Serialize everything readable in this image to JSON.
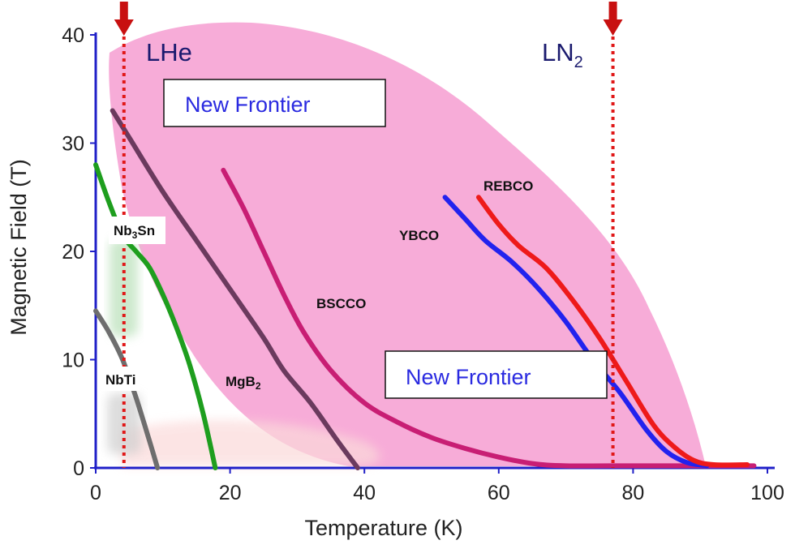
{
  "chart_data": {
    "type": "line",
    "xlabel": "Temperature (K)",
    "ylabel": "Magnetic Field  (T)",
    "xlim": [
      0,
      100
    ],
    "ylim": [
      0,
      40
    ],
    "x_ticks": [
      "0",
      "20",
      "40",
      "60",
      "80",
      "100"
    ],
    "y_ticks": [
      "0",
      "10",
      "20",
      "30",
      "40"
    ],
    "grid": false,
    "reference_lines": [
      {
        "name": "LHe",
        "sub": "",
        "x": 4.2,
        "color": "#e01818"
      },
      {
        "name": "LN",
        "sub": "2",
        "x": 77,
        "color": "#e01818"
      }
    ],
    "regions": [
      {
        "name": "New Frontier",
        "color": "#f7a8d6"
      }
    ],
    "region_labels": [
      "New Frontier",
      "New Frontier"
    ],
    "series": [
      {
        "name": "NbTi",
        "color": "#6e6e6e",
        "x": [
          0,
          2,
          4,
          6,
          8,
          9.2
        ],
        "y": [
          14.5,
          12.5,
          10,
          6.5,
          2.5,
          0
        ]
      },
      {
        "name": "Nb",
        "sub": "3",
        "suffix": "Sn",
        "color": "#1e9e1e",
        "x": [
          0,
          2,
          4,
          6,
          8,
          10,
          12,
          14,
          16,
          17.8
        ],
        "y": [
          28,
          24.5,
          21.5,
          20,
          18.5,
          16,
          13,
          9.5,
          5,
          0
        ]
      },
      {
        "name": "MgB",
        "sub": "2",
        "suffix": "",
        "color": "#6b3a5e",
        "x": [
          2.5,
          5,
          10,
          15,
          20,
          25,
          28,
          32,
          36,
          39
        ],
        "y": [
          33,
          30.5,
          25.5,
          21,
          16.5,
          12,
          9,
          6,
          2.5,
          0
        ]
      },
      {
        "name": "BSCCO",
        "color": "#c81e74",
        "x": [
          19,
          22,
          25,
          28,
          31,
          35,
          40,
          45,
          50,
          55,
          60,
          65,
          70,
          80,
          90,
          98
        ],
        "y": [
          27.5,
          24,
          20,
          16,
          12.5,
          9,
          6,
          4.2,
          2.8,
          1.8,
          1,
          0.4,
          0.2,
          0.2,
          0.2,
          0.2
        ]
      },
      {
        "name": "YBCO",
        "color": "#2222ee",
        "x": [
          52,
          55,
          58,
          62,
          66,
          70,
          74,
          78,
          82,
          85,
          88,
          91
        ],
        "y": [
          25,
          23,
          21,
          19,
          16.5,
          13.5,
          10,
          7,
          3.5,
          1.5,
          0.5,
          0.2
        ]
      },
      {
        "name": "REBCO",
        "color": "#ee1a1a",
        "x": [
          57,
          60,
          63,
          67,
          71,
          75,
          79,
          83,
          86,
          89,
          92,
          97
        ],
        "y": [
          25,
          22.5,
          20.5,
          18.5,
          15.5,
          12,
          8,
          4,
          2,
          0.7,
          0.3,
          0.3
        ]
      }
    ]
  }
}
